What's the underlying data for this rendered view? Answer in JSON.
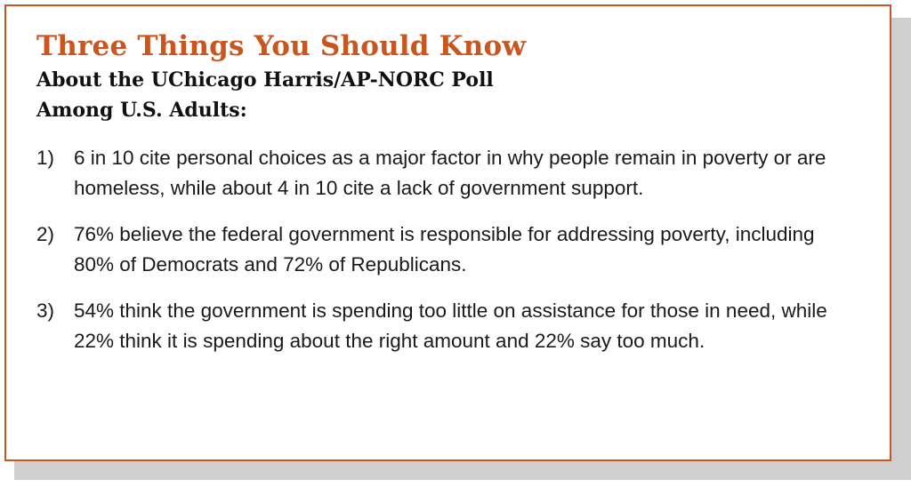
{
  "header": {
    "title": "Three Things You Should Know",
    "subtitle_line1": "About the UChicago Harris/AP-NORC Poll",
    "subtitle_line2": "Among U.S. Adults:"
  },
  "facts": [
    {
      "number": "1)",
      "text": "6 in 10 cite personal choices as a major factor in why people remain in poverty or are homeless, while about 4 in 10 cite a lack of government support."
    },
    {
      "number": "2)",
      "text": "76% believe the federal government is responsible for addressing poverty, including 80% of Democrats and 72% of Republicans."
    },
    {
      "number": "3)",
      "text": "54% think the government is spending too little on assistance for those in need, while 22% think it is spending about the right amount and 22% say too much."
    }
  ],
  "colors": {
    "accent": "#c8561e",
    "text": "#1a1a1a",
    "shadow": "#cfcfcf"
  }
}
